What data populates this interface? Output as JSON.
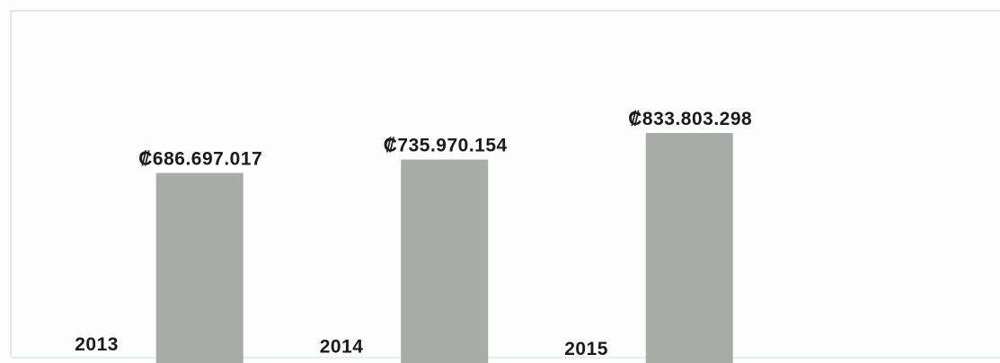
{
  "chart_data": {
    "type": "bar",
    "categories": [
      "2013",
      "2014",
      "2015"
    ],
    "values": [
      686697017,
      735970154,
      833803298
    ],
    "value_labels": [
      "₡686.697.017",
      "₡735.970.154",
      "₡833.803.298"
    ],
    "color": "#a9aba7"
  }
}
